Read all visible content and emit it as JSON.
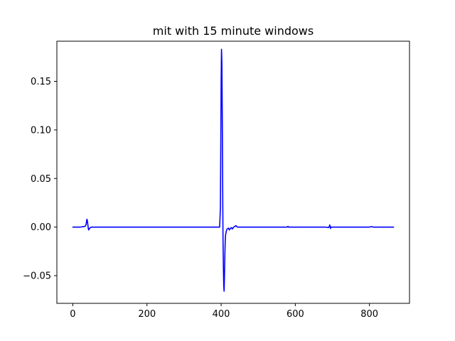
{
  "chart_data": {
    "type": "line",
    "title": "mit with 15 minute windows",
    "xlabel": "",
    "ylabel": "",
    "xlim": [
      -43,
      908
    ],
    "ylim": [
      -0.0785,
      0.1913
    ],
    "xticks": [
      0,
      200,
      400,
      600,
      800
    ],
    "xtick_labels": [
      "0",
      "200",
      "400",
      "600",
      "800"
    ],
    "yticks": [
      -0.05,
      0.0,
      0.05,
      0.1,
      0.15
    ],
    "ytick_labels": [
      "−0.05",
      "0.00",
      "0.05",
      "0.10",
      "0.15"
    ],
    "grid": false,
    "colors": {
      "series": "#0000ff",
      "axes": "#000000",
      "background": "#ffffff"
    },
    "series": [
      {
        "x": [
          0,
          20,
          30,
          34,
          36,
          37,
          38,
          39,
          40,
          41,
          42,
          43,
          44,
          46,
          50,
          60,
          100,
          200,
          300,
          380,
          396,
          398,
          399,
          400,
          401,
          402,
          403,
          404,
          405,
          406,
          407,
          408,
          409,
          410,
          411,
          412,
          414,
          416,
          420,
          422,
          424,
          426,
          428,
          430,
          432,
          434,
          436,
          438,
          440,
          442,
          444,
          448,
          460,
          500,
          560,
          578,
          580,
          582,
          600,
          680,
          690,
          692,
          693,
          694,
          695,
          696,
          700,
          720,
          800,
          806,
          810,
          865
        ],
        "y": [
          0.0,
          0.0,
          0.0005,
          0.001,
          0.003,
          0.006,
          0.008,
          0.007,
          0.004,
          0.001,
          -0.002,
          -0.003,
          -0.002,
          -0.001,
          0.0,
          0.0,
          0.0,
          0.0,
          0.0,
          0.0,
          0.0,
          0.02,
          0.08,
          0.15,
          0.183,
          0.17,
          0.12,
          0.05,
          -0.01,
          -0.04,
          -0.06,
          -0.066,
          -0.05,
          -0.03,
          -0.015,
          -0.008,
          -0.004,
          -0.002,
          -0.001,
          -0.003,
          -0.002,
          -0.001,
          -0.0005,
          -0.002,
          -0.001,
          0.0,
          0.0005,
          0.001,
          0.0015,
          0.0005,
          0.0,
          0.0,
          0.0,
          0.0,
          0.0,
          0.0,
          0.0008,
          0.0,
          0.0,
          0.0,
          -0.0005,
          0.001,
          0.0022,
          0.0005,
          -0.0015,
          0.0,
          0.0,
          0.0,
          0.0,
          0.0005,
          0.0,
          0.0
        ]
      }
    ]
  }
}
